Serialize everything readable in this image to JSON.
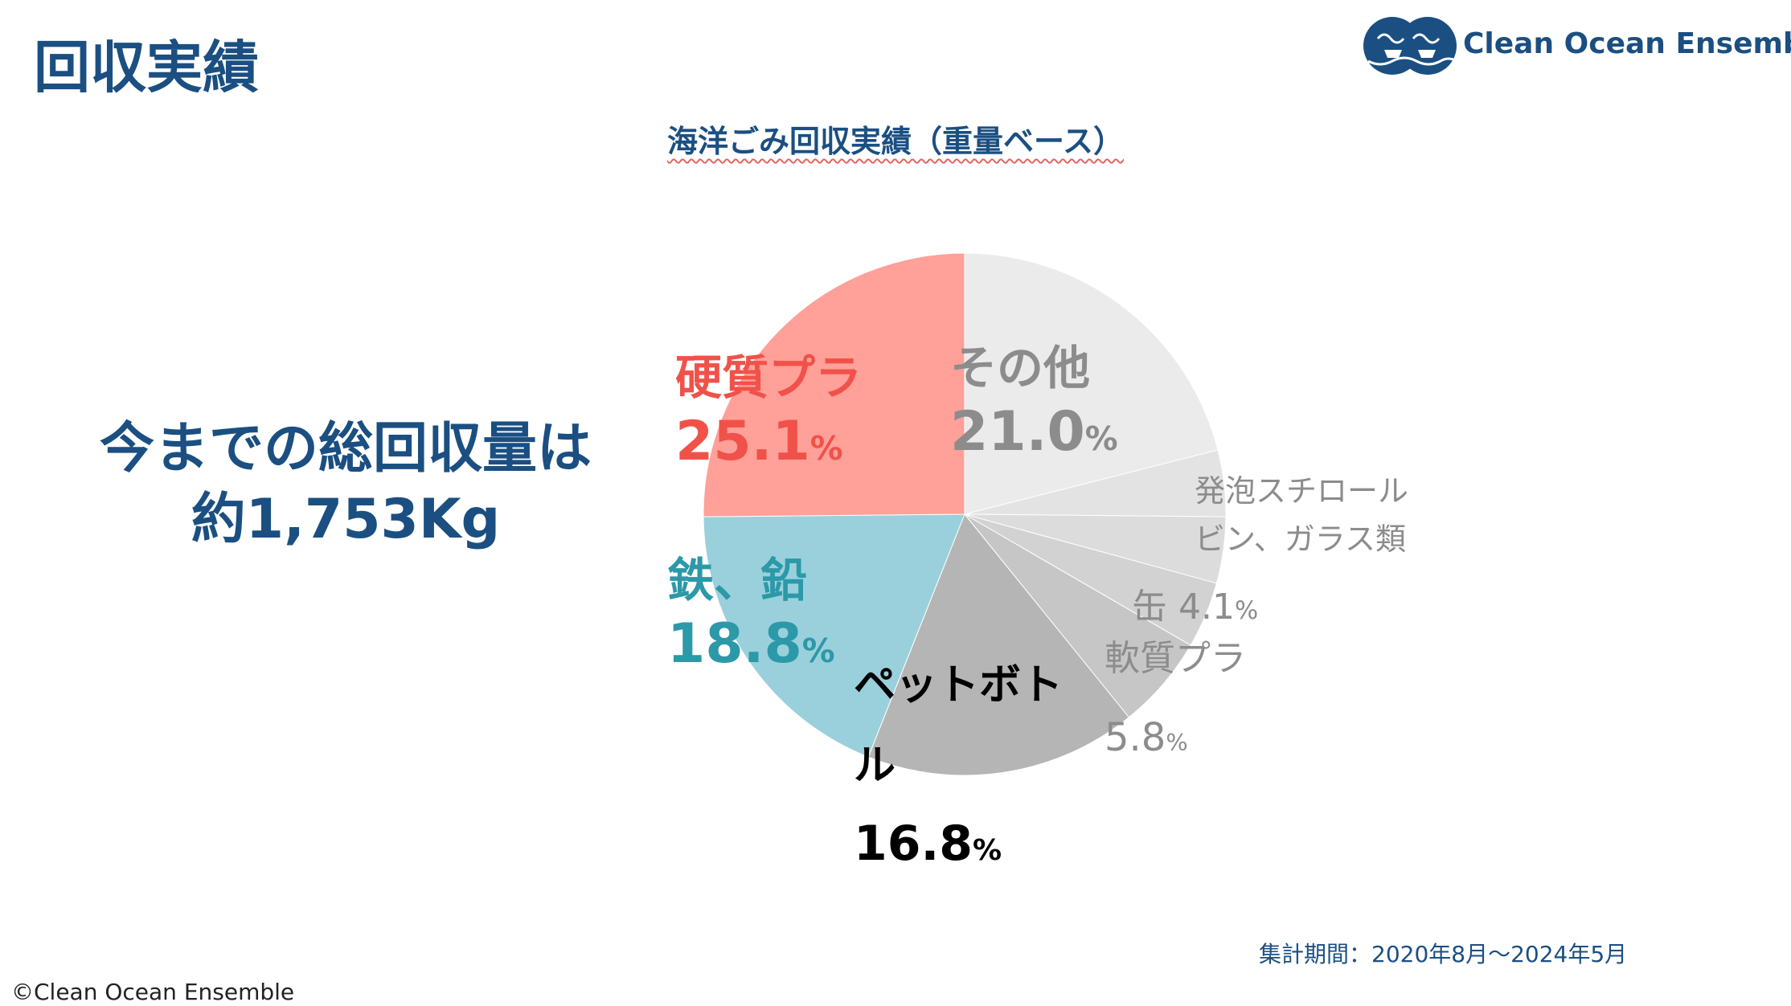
{
  "page": {
    "title": "回収実績",
    "logo_text": "Clean Ocean Ensemble",
    "summary_line1": "今までの総回収量は",
    "summary_line2": "約1,753Kg",
    "footnote": "集計期間：2020年8月〜2024年5月",
    "copyright": "©Clean Ocean Ensemble"
  },
  "chart_data": {
    "type": "pie",
    "title": "海洋ごみ回収実績（重量ベース）",
    "unit": "%",
    "start": "12 o'clock",
    "direction": "clockwise",
    "slices": [
      {
        "name": "その他",
        "value": 21.0,
        "color": "#ebebeb",
        "label_color": "#8c8c8c"
      },
      {
        "name": "発泡スチロール",
        "value": 4.1,
        "color": "#e3e3e3",
        "label_color": "#8c8c8c"
      },
      {
        "name": "ビン、ガラス類",
        "value": 4.1,
        "color": "#dcdcdc",
        "label_color": "#8c8c8c"
      },
      {
        "name": "缶",
        "value": 4.1,
        "color": "#d2d2d2",
        "label_color": "#8c8c8c"
      },
      {
        "name": "軟質プラ",
        "value": 5.8,
        "color": "#c6c6c6",
        "label_color": "#8c8c8c"
      },
      {
        "name": "ペットボトル",
        "value": 16.8,
        "color": "#b5b5b5",
        "label_color": "#000000"
      },
      {
        "name": "鉄、鉛",
        "value": 18.8,
        "color": "#9ad0dc",
        "label_color": "#2c99a8"
      },
      {
        "name": "硬質プラ",
        "value": 25.1,
        "color": "#ffa099",
        "label_color": "#f0524a"
      }
    ],
    "labels": [
      {
        "id": "sonota",
        "lines": [
          "その他"
        ],
        "pct": "21.0",
        "unit": "%"
      },
      {
        "id": "koushitsu",
        "lines": [
          "硬質プラ"
        ],
        "pct": "25.1",
        "unit": "%"
      },
      {
        "id": "tetsu",
        "lines": [
          "鉄、鉛"
        ],
        "pct": "18.8",
        "unit": "%"
      },
      {
        "id": "pet",
        "lines": [
          "ペットボト",
          "ル"
        ],
        "pct": "16.8",
        "unit": "%"
      },
      {
        "id": "happou",
        "lines": [
          "発泡スチロール",
          "ビン、ガラス類"
        ],
        "pct": "",
        "unit": ""
      },
      {
        "id": "kan",
        "lines": [
          "缶"
        ],
        "pct": "4.1",
        "unit": "%"
      },
      {
        "id": "nanshitsu",
        "lines": [
          "軟質プラ"
        ],
        "pct": "5.8",
        "unit": "%"
      }
    ]
  }
}
